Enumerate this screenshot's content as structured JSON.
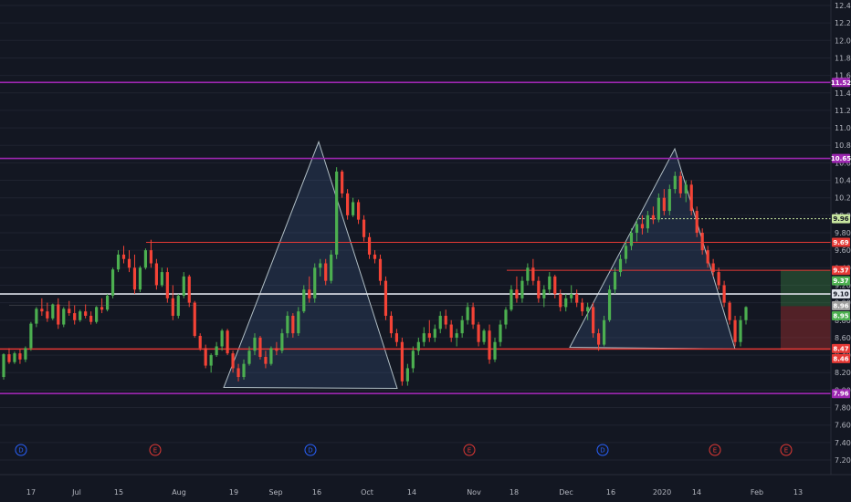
{
  "chart_data": {
    "type": "candlestick",
    "symbol_hidden": true,
    "yaxis": {
      "range": [
        7.2,
        12.44
      ],
      "ticks": [
        "7.20",
        "7.40",
        "7.60",
        "7.80",
        "8.00",
        "8.20",
        "8.40",
        "8.60",
        "8.80",
        "9.00",
        "9.20",
        "9.40",
        "9.60",
        "9.80",
        "10.00",
        "10.20",
        "10.40",
        "10.60",
        "10.80",
        "11.00",
        "11.20",
        "11.40",
        "11.60",
        "11.80",
        "12.00",
        "12.20",
        "12.40"
      ]
    },
    "xaxis": {
      "ticks": [
        "17",
        "Jul",
        "15",
        "Aug",
        "19",
        "Sep",
        "16",
        "Oct",
        "14",
        "Nov",
        "18",
        "Dec",
        "16",
        "2020",
        "14",
        "Feb",
        "13"
      ]
    },
    "price_lines": [
      {
        "price": 11.52,
        "label": "11.52",
        "color": "#9c27b0"
      },
      {
        "price": 10.65,
        "label": "10.65",
        "color": "#9c27b0"
      },
      {
        "price": 7.96,
        "label": "7.96",
        "color": "#9c27b0"
      },
      {
        "price": 9.69,
        "label": "9.69",
        "color": "#e53935"
      },
      {
        "price": 9.37,
        "label": "9.37",
        "color": "#e53935"
      },
      {
        "price": 8.47,
        "label": "8.47",
        "color": "#e53935"
      },
      {
        "price": 8.46,
        "label": "8.46",
        "color": "#e53935"
      },
      {
        "price": 9.1,
        "label": "9.10",
        "color": "#e0e3eb"
      },
      {
        "price": 9.96,
        "label": "9.96",
        "color": "#c8e6a0"
      }
    ],
    "position_tool": {
      "take_profit": 9.37,
      "entry": 8.96,
      "stop": 8.46,
      "tp_color": "#4caf50",
      "stop_color": "#e53935",
      "entry_label": "8.96",
      "entry2_label": "8.95",
      "tp_label": "9.37"
    },
    "patterns": [
      {
        "name": "left-triangle",
        "points": [
          [
            245,
            8.03
          ],
          [
            349,
            10.84
          ],
          [
            435,
            8.02
          ]
        ]
      },
      {
        "name": "right-triangle",
        "points": [
          [
            624,
            8.49
          ],
          [
            739,
            10.76
          ],
          [
            805,
            8.47
          ]
        ]
      }
    ],
    "events": [
      {
        "type": "D",
        "x": 23,
        "color": "#2962ff"
      },
      {
        "type": "E",
        "x": 170,
        "color": "#e53935"
      },
      {
        "type": "D",
        "x": 340,
        "color": "#2962ff"
      },
      {
        "type": "E",
        "x": 514,
        "color": "#e53935"
      },
      {
        "type": "D",
        "x": 660,
        "color": "#2962ff"
      },
      {
        "type": "E",
        "x": 783,
        "color": "#e53935"
      },
      {
        "type": "E",
        "x": 861,
        "color": "#e53935"
      }
    ],
    "candles": [
      [
        8.15,
        8.42,
        8.12,
        8.41
      ],
      [
        8.41,
        8.48,
        8.3,
        8.32
      ],
      [
        8.32,
        8.44,
        8.3,
        8.42
      ],
      [
        8.42,
        8.47,
        8.3,
        8.35
      ],
      [
        8.35,
        8.5,
        8.32,
        8.48
      ],
      [
        8.48,
        8.78,
        8.45,
        8.76
      ],
      [
        8.76,
        8.95,
        8.72,
        8.93
      ],
      [
        8.93,
        9.05,
        8.85,
        8.9
      ],
      [
        8.9,
        9.0,
        8.78,
        8.82
      ],
      [
        8.82,
        8.99,
        8.8,
        8.98
      ],
      [
        8.98,
        9.05,
        8.7,
        8.75
      ],
      [
        8.75,
        8.95,
        8.72,
        8.93
      ],
      [
        8.93,
        9.02,
        8.85,
        8.88
      ],
      [
        8.88,
        8.97,
        8.75,
        8.8
      ],
      [
        8.8,
        8.92,
        8.78,
        8.9
      ],
      [
        8.9,
        8.98,
        8.82,
        8.85
      ],
      [
        8.85,
        8.9,
        8.75,
        8.78
      ],
      [
        8.78,
        8.96,
        8.76,
        8.95
      ],
      [
        8.95,
        9.05,
        8.88,
        8.92
      ],
      [
        8.92,
        9.1,
        8.9,
        9.08
      ],
      [
        9.08,
        9.4,
        9.05,
        9.38
      ],
      [
        9.38,
        9.6,
        9.35,
        9.55
      ],
      [
        9.55,
        9.65,
        9.45,
        9.5
      ],
      [
        9.5,
        9.6,
        9.35,
        9.4
      ],
      [
        9.4,
        9.55,
        9.1,
        9.15
      ],
      [
        9.15,
        9.42,
        9.12,
        9.4
      ],
      [
        9.4,
        9.62,
        9.38,
        9.6
      ],
      [
        9.6,
        9.72,
        9.4,
        9.45
      ],
      [
        9.45,
        9.5,
        9.15,
        9.2
      ],
      [
        9.2,
        9.4,
        9.18,
        9.35
      ],
      [
        9.35,
        9.4,
        9.0,
        9.05
      ],
      [
        9.05,
        9.2,
        8.8,
        8.85
      ],
      [
        8.85,
        9.1,
        8.82,
        9.08
      ],
      [
        9.08,
        9.35,
        9.05,
        9.3
      ],
      [
        9.3,
        9.32,
        8.95,
        9.0
      ],
      [
        9.0,
        9.02,
        8.6,
        8.62
      ],
      [
        8.62,
        8.65,
        8.45,
        8.48
      ],
      [
        8.48,
        8.52,
        8.25,
        8.28
      ],
      [
        8.28,
        8.42,
        8.2,
        8.4
      ],
      [
        8.4,
        8.55,
        8.38,
        8.5
      ],
      [
        8.5,
        8.7,
        8.45,
        8.68
      ],
      [
        8.68,
        8.7,
        8.4,
        8.42
      ],
      [
        8.42,
        8.45,
        8.2,
        8.25
      ],
      [
        8.25,
        8.3,
        8.1,
        8.15
      ],
      [
        8.15,
        8.35,
        8.12,
        8.3
      ],
      [
        8.3,
        8.5,
        8.28,
        8.45
      ],
      [
        8.45,
        8.65,
        8.4,
        8.6
      ],
      [
        8.6,
        8.62,
        8.35,
        8.38
      ],
      [
        8.38,
        8.45,
        8.25,
        8.3
      ],
      [
        8.3,
        8.5,
        8.28,
        8.48
      ],
      [
        8.48,
        8.55,
        8.4,
        8.45
      ],
      [
        8.45,
        8.7,
        8.42,
        8.65
      ],
      [
        8.65,
        8.9,
        8.6,
        8.85
      ],
      [
        8.85,
        8.88,
        8.6,
        8.65
      ],
      [
        8.65,
        8.95,
        8.62,
        8.9
      ],
      [
        8.9,
        9.2,
        8.88,
        9.15
      ],
      [
        9.15,
        9.3,
        9.0,
        9.05
      ],
      [
        9.05,
        9.45,
        9.0,
        9.4
      ],
      [
        9.4,
        9.5,
        9.3,
        9.45
      ],
      [
        9.45,
        9.5,
        9.2,
        9.25
      ],
      [
        9.25,
        9.6,
        9.22,
        9.55
      ],
      [
        9.55,
        10.55,
        9.5,
        10.5
      ],
      [
        10.5,
        10.52,
        10.2,
        10.25
      ],
      [
        10.25,
        10.3,
        9.95,
        10.0
      ],
      [
        10.0,
        10.2,
        9.98,
        10.15
      ],
      [
        10.15,
        10.18,
        9.9,
        9.95
      ],
      [
        9.95,
        10.0,
        9.7,
        9.75
      ],
      [
        9.75,
        9.8,
        9.5,
        9.55
      ],
      [
        9.55,
        9.6,
        9.45,
        9.5
      ],
      [
        9.5,
        9.55,
        9.2,
        9.25
      ],
      [
        9.25,
        9.3,
        8.8,
        8.85
      ],
      [
        8.85,
        8.9,
        8.6,
        8.65
      ],
      [
        8.65,
        8.7,
        8.5,
        8.55
      ],
      [
        8.55,
        8.6,
        8.05,
        8.1
      ],
      [
        8.1,
        8.3,
        8.05,
        8.25
      ],
      [
        8.25,
        8.5,
        8.2,
        8.45
      ],
      [
        8.45,
        8.6,
        8.4,
        8.55
      ],
      [
        8.55,
        8.72,
        8.5,
        8.65
      ],
      [
        8.65,
        8.8,
        8.55,
        8.6
      ],
      [
        8.6,
        8.75,
        8.55,
        8.7
      ],
      [
        8.7,
        8.9,
        8.65,
        8.85
      ],
      [
        8.85,
        8.92,
        8.7,
        8.75
      ],
      [
        8.75,
        8.8,
        8.55,
        8.6
      ],
      [
        8.6,
        8.7,
        8.5,
        8.65
      ],
      [
        8.65,
        8.85,
        8.6,
        8.8
      ],
      [
        8.8,
        9.0,
        8.75,
        8.95
      ],
      [
        8.95,
        9.0,
        8.7,
        8.75
      ],
      [
        8.75,
        8.78,
        8.5,
        8.55
      ],
      [
        8.55,
        8.7,
        8.52,
        8.68
      ],
      [
        8.68,
        8.75,
        8.3,
        8.35
      ],
      [
        8.35,
        8.6,
        8.32,
        8.55
      ],
      [
        8.55,
        8.8,
        8.5,
        8.75
      ],
      [
        8.75,
        8.95,
        8.7,
        8.92
      ],
      [
        8.92,
        9.2,
        8.9,
        9.15
      ],
      [
        9.15,
        9.3,
        9.0,
        9.05
      ],
      [
        9.05,
        9.3,
        9.0,
        9.25
      ],
      [
        9.25,
        9.45,
        9.2,
        9.4
      ],
      [
        9.4,
        9.5,
        9.2,
        9.25
      ],
      [
        9.25,
        9.3,
        9.0,
        9.05
      ],
      [
        9.05,
        9.2,
        8.95,
        9.15
      ],
      [
        9.15,
        9.35,
        9.1,
        9.3
      ],
      [
        9.3,
        9.32,
        9.05,
        9.1
      ],
      [
        9.1,
        9.15,
        8.9,
        8.95
      ],
      [
        8.95,
        9.1,
        8.9,
        9.05
      ],
      [
        9.05,
        9.2,
        9.0,
        9.1
      ],
      [
        9.1,
        9.15,
        8.95,
        9.0
      ],
      [
        9.0,
        9.05,
        8.85,
        8.9
      ],
      [
        8.9,
        9.0,
        8.8,
        8.95
      ],
      [
        8.95,
        9.0,
        8.6,
        8.65
      ],
      [
        8.65,
        8.7,
        8.45,
        8.52
      ],
      [
        8.52,
        8.85,
        8.5,
        8.8
      ],
      [
        8.8,
        9.2,
        8.78,
        9.15
      ],
      [
        9.15,
        9.4,
        9.1,
        9.35
      ],
      [
        9.35,
        9.55,
        9.3,
        9.5
      ],
      [
        9.5,
        9.7,
        9.45,
        9.65
      ],
      [
        9.65,
        9.85,
        9.6,
        9.8
      ],
      [
        9.8,
        9.95,
        9.7,
        9.9
      ],
      [
        9.9,
        10.0,
        9.78,
        9.85
      ],
      [
        9.85,
        10.05,
        9.8,
        10.0
      ],
      [
        10.0,
        10.1,
        9.9,
        9.95
      ],
      [
        9.95,
        10.25,
        9.92,
        10.2
      ],
      [
        10.2,
        10.3,
        10.0,
        10.05
      ],
      [
        10.05,
        10.35,
        10.0,
        10.3
      ],
      [
        10.3,
        10.5,
        10.25,
        10.45
      ],
      [
        10.45,
        10.5,
        10.2,
        10.25
      ],
      [
        10.25,
        10.4,
        10.15,
        10.35
      ],
      [
        10.35,
        10.4,
        10.0,
        10.05
      ],
      [
        10.05,
        10.1,
        9.75,
        9.8
      ],
      [
        9.8,
        9.85,
        9.55,
        9.6
      ],
      [
        9.6,
        9.65,
        9.4,
        9.45
      ],
      [
        9.45,
        9.5,
        9.3,
        9.35
      ],
      [
        9.35,
        9.4,
        9.15,
        9.2
      ],
      [
        9.2,
        9.25,
        8.95,
        9.0
      ],
      [
        9.0,
        9.02,
        8.75,
        8.8
      ],
      [
        8.8,
        8.85,
        8.5,
        8.55
      ],
      [
        8.55,
        8.85,
        8.5,
        8.8
      ],
      [
        8.8,
        8.96,
        8.75,
        8.95
      ]
    ]
  }
}
